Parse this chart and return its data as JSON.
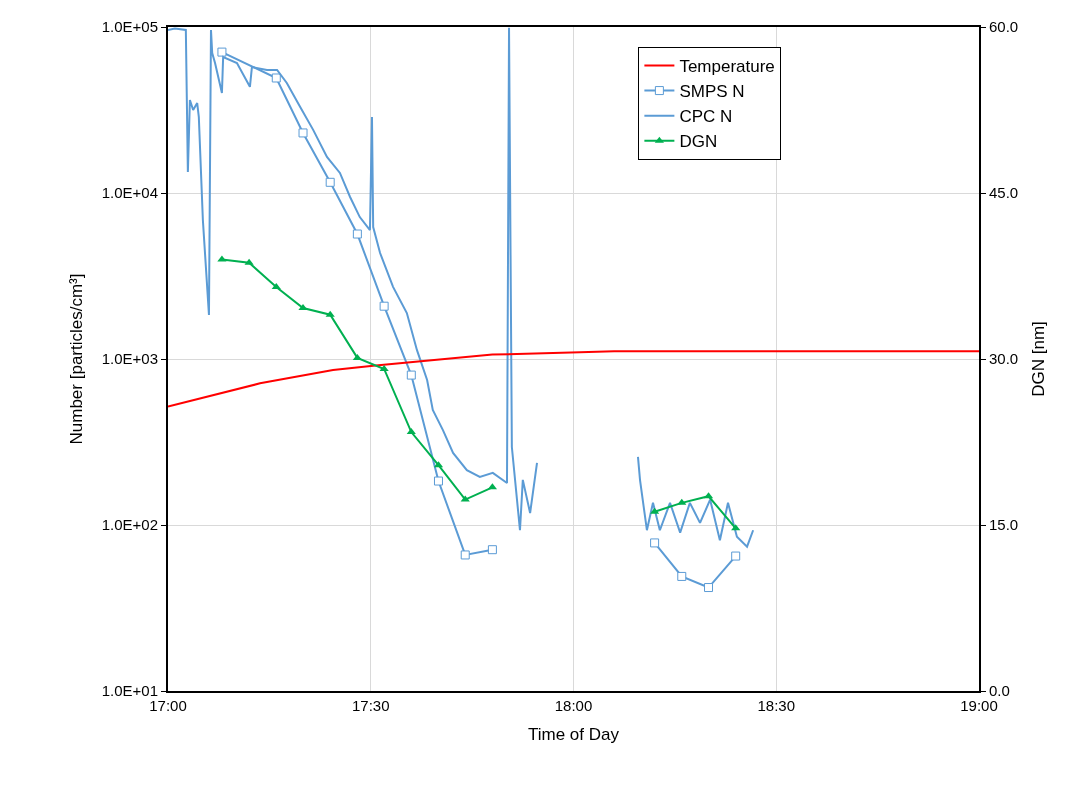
{
  "chart_data": {
    "type": "line",
    "xlabel": "Time of Day",
    "ylabel": "Number [particles/cm³]",
    "y2label": "DGN [nm]",
    "xlim": [
      17,
      19
    ],
    "xticks": [
      {
        "value": 17,
        "label": "17:00"
      },
      {
        "value": 17.5,
        "label": "17:30"
      },
      {
        "value": 18,
        "label": "18:00"
      },
      {
        "value": 18.5,
        "label": "18:30"
      },
      {
        "value": 19,
        "label": "19:00"
      }
    ],
    "ylim": [
      10,
      100000
    ],
    "log": "y",
    "yticks": [
      {
        "value": 10,
        "label": "1.0E+01"
      },
      {
        "value": 100,
        "label": "1.0E+02"
      },
      {
        "value": 1000,
        "label": "1.0E+03"
      },
      {
        "value": 10000,
        "label": "1.0E+04"
      },
      {
        "value": 100000,
        "label": "1.0E+05"
      }
    ],
    "y2lim": [
      0,
      60
    ],
    "y2ticks": [
      {
        "value": 0,
        "label": "0.0"
      },
      {
        "value": 15,
        "label": "15.0"
      },
      {
        "value": 30,
        "label": "30.0"
      },
      {
        "value": 45,
        "label": "45.0"
      },
      {
        "value": 60,
        "label": "60.0"
      }
    ],
    "grid": true,
    "legend": "top right",
    "series": [
      {
        "name": "Temperature",
        "color": "#ff0000",
        "axis": "y2",
        "marker": "none",
        "x": [
          17,
          17.227,
          17.407,
          17.506,
          17.8,
          18.016,
          18.1,
          19
        ],
        "values": [
          25.7,
          27.8,
          29.0,
          29.4,
          30.4,
          30.6,
          30.7,
          30.7
        ]
      },
      {
        "name": "SMPS N",
        "color": "#5b9bd5",
        "marker": "square",
        "x": [
          17.133,
          17.267,
          17.333,
          17.4,
          17.467,
          17.533,
          17.6,
          17.667,
          17.733,
          17.8,
          18.0,
          18.2,
          18.267,
          18.333,
          18.4
        ],
        "values": [
          70600,
          49300,
          23000,
          11600,
          5660,
          2080,
          800,
          184,
          66,
          71,
          null,
          78,
          49,
          42,
          65
        ]
      },
      {
        "name": "CPC N",
        "color": "#5b9bd5",
        "marker": "none",
        "x": [
          17.0,
          17.017,
          17.044,
          17.049,
          17.054,
          17.062,
          17.072,
          17.076,
          17.086,
          17.101,
          17.106,
          17.109,
          17.116,
          17.133,
          17.136,
          17.17,
          17.202,
          17.207,
          17.244,
          17.269,
          17.293,
          17.326,
          17.358,
          17.392,
          17.424,
          17.449,
          17.473,
          17.498,
          17.503,
          17.506,
          17.523,
          17.555,
          17.589,
          17.614,
          17.639,
          17.653,
          17.678,
          17.703,
          17.737,
          17.769,
          17.801,
          17.836,
          17.841,
          17.848,
          17.868,
          17.875,
          17.893,
          17.91,
          18.0,
          18.159,
          18.164,
          18.181,
          18.196,
          18.213,
          18.238,
          18.263,
          18.287,
          18.312,
          18.337,
          18.361,
          18.381,
          18.403,
          18.428,
          18.443
        ],
        "values": [
          96000,
          98000,
          96000,
          13400,
          36300,
          31600,
          34800,
          28700,
          6880,
          1840,
          96000,
          69700,
          60700,
          40000,
          65900,
          60700,
          43600,
          57400,
          55100,
          55100,
          46000,
          33000,
          24000,
          16500,
          13200,
          9460,
          7160,
          5980,
          28700,
          6240,
          4350,
          2720,
          1890,
          1130,
          747,
          493,
          373,
          272,
          214,
          195,
          206,
          179,
          99000,
          295,
          93,
          187,
          118,
          237,
          null,
          257,
          187,
          93,
          136,
          93,
          136,
          90,
          136,
          103,
          142,
          81,
          136,
          85,
          74,
          93
        ]
      },
      {
        "name": "DGN",
        "color": "#00b050",
        "axis": "y2",
        "marker": "triangle",
        "x": [
          17.133,
          17.2,
          17.267,
          17.333,
          17.4,
          17.467,
          17.533,
          17.6,
          17.667,
          17.733,
          17.8,
          18.0,
          18.2,
          18.267,
          18.333,
          18.4
        ],
        "values": [
          39.0,
          38.7,
          36.5,
          34.6,
          34.0,
          30.1,
          29.1,
          23.4,
          20.4,
          17.3,
          18.4,
          null,
          16.2,
          17.0,
          17.6,
          14.7
        ]
      }
    ]
  }
}
